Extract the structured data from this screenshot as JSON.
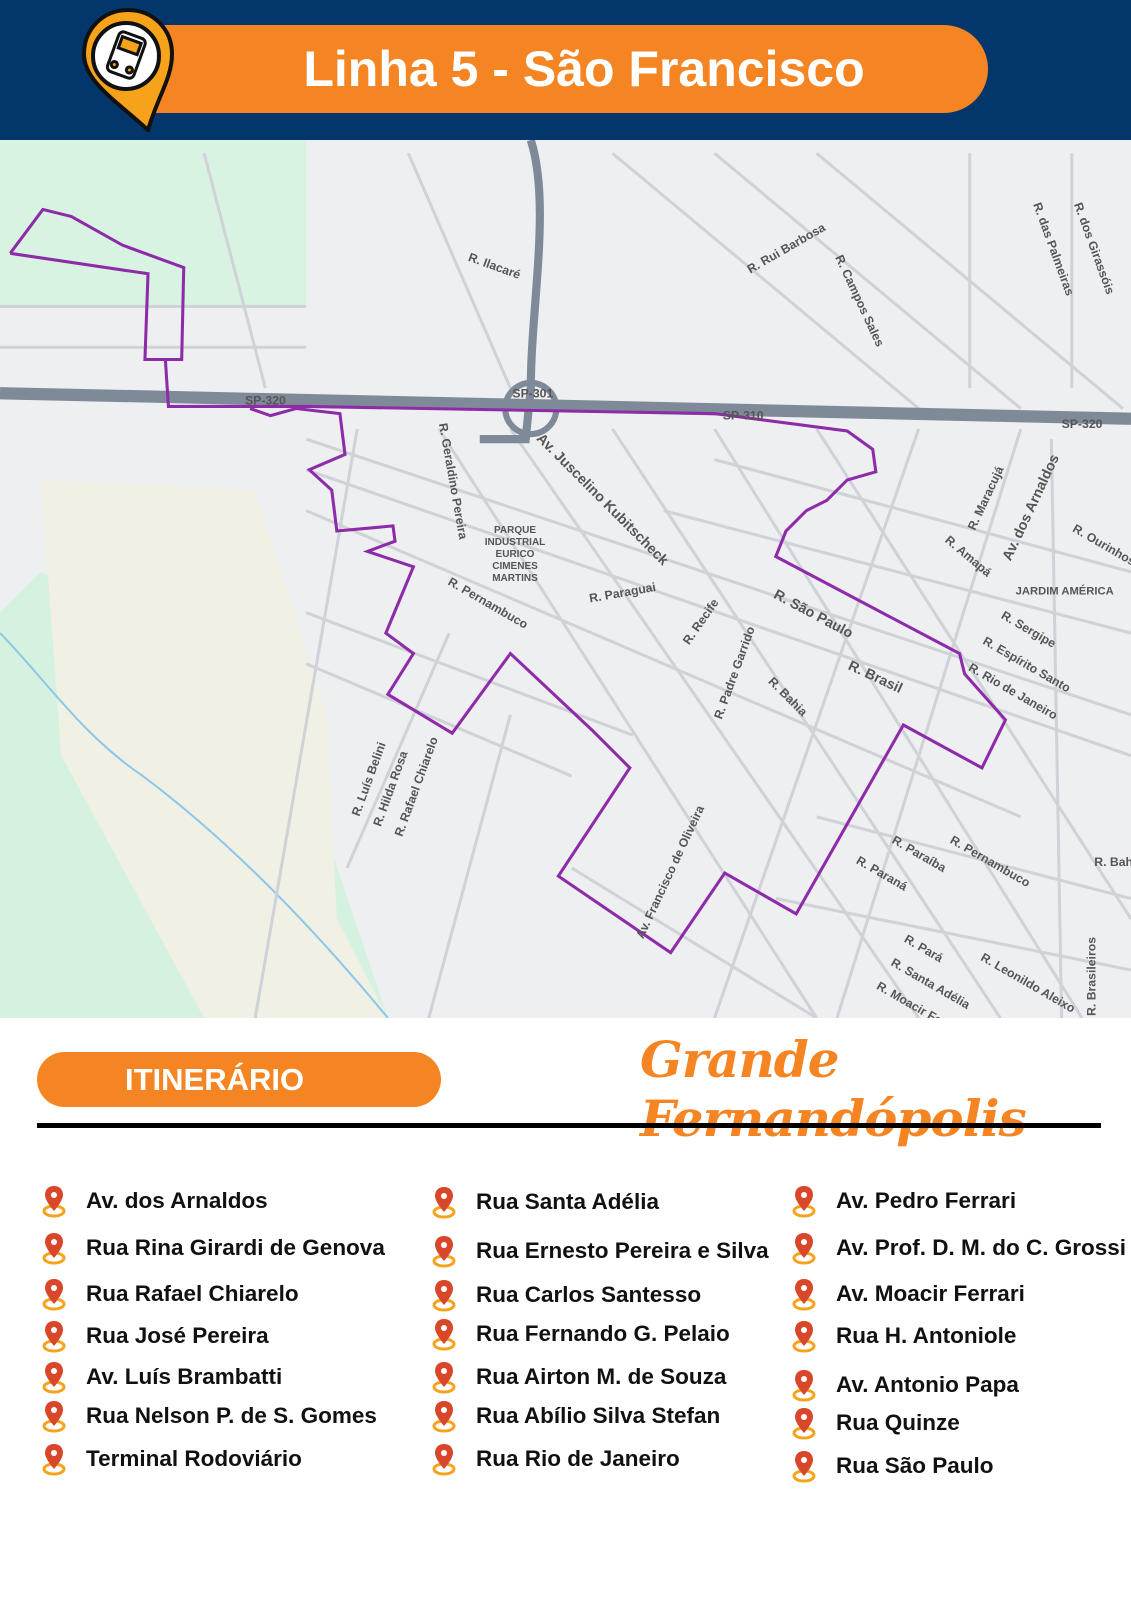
{
  "header": {
    "title": "Linha 5 - São Francisco",
    "icon": "bus-pin-icon"
  },
  "map": {
    "route_color": "#8e2ba8",
    "labels": {
      "ilacare": "R. Ilacaré",
      "rui_barbosa": "R. Rui Barbosa",
      "campos_sales": "R. Campos Sales",
      "palmeiras": "R. das Palmeiras",
      "girassois": "R. dos Girassóis",
      "sp320a": "SP-320",
      "sp301": "SP-301",
      "sp310": "SP-310",
      "sp320b": "SP-320",
      "geraldino": "R. Geraldino Pereira",
      "jk": "Av. Juscelino Kubitscheck",
      "parque": "PARQUE INDUSTRIAL EURICO CIMENES MARTINS",
      "parague": "R. Paraguai",
      "pernambuco": "R. Pernambuco",
      "recife": "R. Recife",
      "sao_paulo": "R. São Paulo",
      "brasil": "R. Brasil",
      "padre": "R. Padre Garrido",
      "bahia": "R. Bahia",
      "maracuja": "R. Maracujá",
      "amapa": "R. Amapá",
      "arnaldos": "Av. dos Arnaldos",
      "jardim": "JARDIM AMÉRICA",
      "sergipe": "R. Sergipe",
      "espirito": "R. Espírito Santo",
      "rio": "R. Rio de Janeiro",
      "ourinhos": "R. Ourinhos",
      "luis": "R. Luís Belini",
      "hilda": "R. Hilda Rosa",
      "rafael": "R. Rafael Chiarelo",
      "oliveira": "Av. Francisco de Oliveira",
      "paraiba": "R. Paraíba",
      "parana": "R. Paraná",
      "pernambuco2": "R. Pernambuco",
      "bahia2": "R. Bahia",
      "para": "R. Pará",
      "santa_adelia": "R. Santa Adélia",
      "moacir": "R. Moacir Ferrari",
      "leonildo": "R. Leonildo Aleixo",
      "brasileiros": "R. Brasileiros"
    }
  },
  "itinerary": {
    "label": "ITINERÁRIO",
    "brand": "Grande Fernandópolis",
    "marker_color": "#d9472b",
    "columns": [
      [
        "Av. dos Arnaldos",
        "Rua Rina Girardi de Genova",
        "Rua Rafael Chiarelo",
        "Rua José Pereira",
        "Av. Luís Brambatti",
        "Rua Nelson P. de S. Gomes",
        "Terminal Rodoviário"
      ],
      [
        "Rua Santa Adélia",
        "Rua Ernesto Pereira e Silva",
        "Rua Carlos Santesso",
        "Rua Fernando G. Pelaio",
        "Rua Airton M. de Souza",
        "Rua Abílio Silva Stefan",
        "Rua Rio de Janeiro"
      ],
      [
        "Av. Pedro Ferrari",
        "Av. Prof. D. M. do C. Grossi",
        "Av. Moacir Ferrari",
        "Rua H. Antoniole",
        "Av. Antonio Papa",
        "Rua Quinze",
        "Rua São Paulo"
      ]
    ]
  }
}
